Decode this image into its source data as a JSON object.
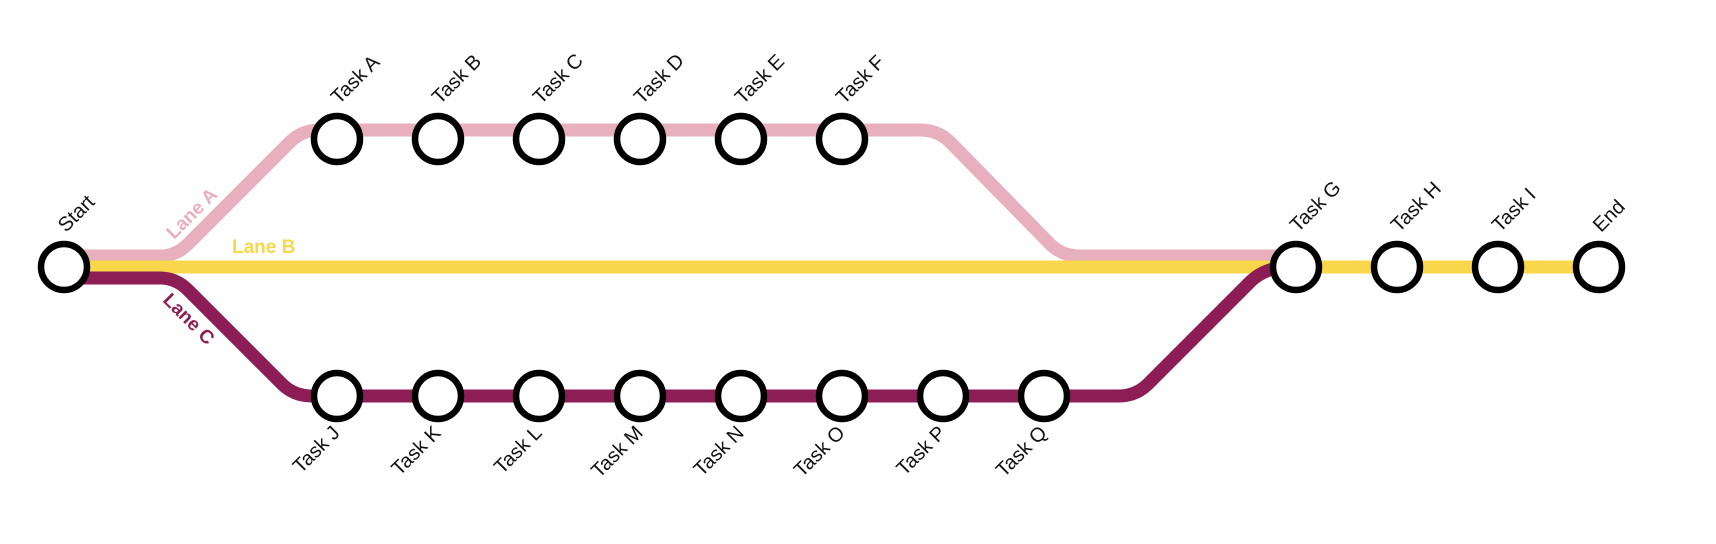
{
  "lanes": [
    {
      "id": "lane-a",
      "label": "Lane A",
      "color": "#E8B0BF"
    },
    {
      "id": "lane-b",
      "label": "Lane B",
      "color": "#F9D74A"
    },
    {
      "id": "lane-c",
      "label": "Lane C",
      "color": "#8C1E55"
    }
  ],
  "nodes": {
    "start": "Start",
    "end": "End",
    "lane_a": [
      "Task A",
      "Task B",
      "Task C",
      "Task D",
      "Task E",
      "Task F"
    ],
    "merge": [
      "Task G",
      "Task H",
      "Task I"
    ],
    "lane_c": [
      "Task J",
      "Task K",
      "Task L",
      "Task M",
      "Task N",
      "Task O",
      "Task P",
      "Task Q"
    ]
  },
  "node_style": {
    "fill": "#FFFFFF",
    "stroke": "#000000"
  }
}
